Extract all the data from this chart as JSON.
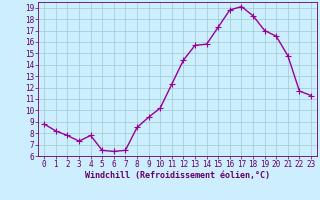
{
  "x": [
    0,
    1,
    2,
    3,
    4,
    5,
    6,
    7,
    8,
    9,
    10,
    11,
    12,
    13,
    14,
    15,
    16,
    17,
    18,
    19,
    20,
    21,
    22,
    23
  ],
  "y": [
    8.8,
    8.2,
    7.8,
    7.3,
    7.8,
    6.5,
    6.4,
    6.5,
    8.5,
    9.4,
    10.2,
    12.3,
    14.4,
    15.7,
    15.8,
    17.3,
    18.8,
    19.1,
    18.3,
    17.0,
    16.5,
    14.8,
    11.7,
    11.3
  ],
  "line_color": "#990099",
  "marker": "+",
  "markersize": 4,
  "linewidth": 1.0,
  "background_color": "#cceeff",
  "grid_color": "#99cccc",
  "xlabel": "Windchill (Refroidissement éolien,°C)",
  "xlabel_fontsize": 6.0,
  "tick_fontsize": 5.5,
  "ylim": [
    6,
    19.5
  ],
  "xlim": [
    -0.5,
    23.5
  ],
  "yticks": [
    6,
    7,
    8,
    9,
    10,
    11,
    12,
    13,
    14,
    15,
    16,
    17,
    18,
    19
  ],
  "xticks": [
    0,
    1,
    2,
    3,
    4,
    5,
    6,
    7,
    8,
    9,
    10,
    11,
    12,
    13,
    14,
    15,
    16,
    17,
    18,
    19,
    20,
    21,
    22,
    23
  ],
  "xtick_labels": [
    "0",
    "1",
    "2",
    "3",
    "4",
    "5",
    "6",
    "7",
    "8",
    "9",
    "10",
    "11",
    "12",
    "13",
    "14",
    "15",
    "16",
    "17",
    "18",
    "19",
    "20",
    "21",
    "22",
    "23"
  ],
  "text_color": "#660066",
  "spine_color": "#660066"
}
